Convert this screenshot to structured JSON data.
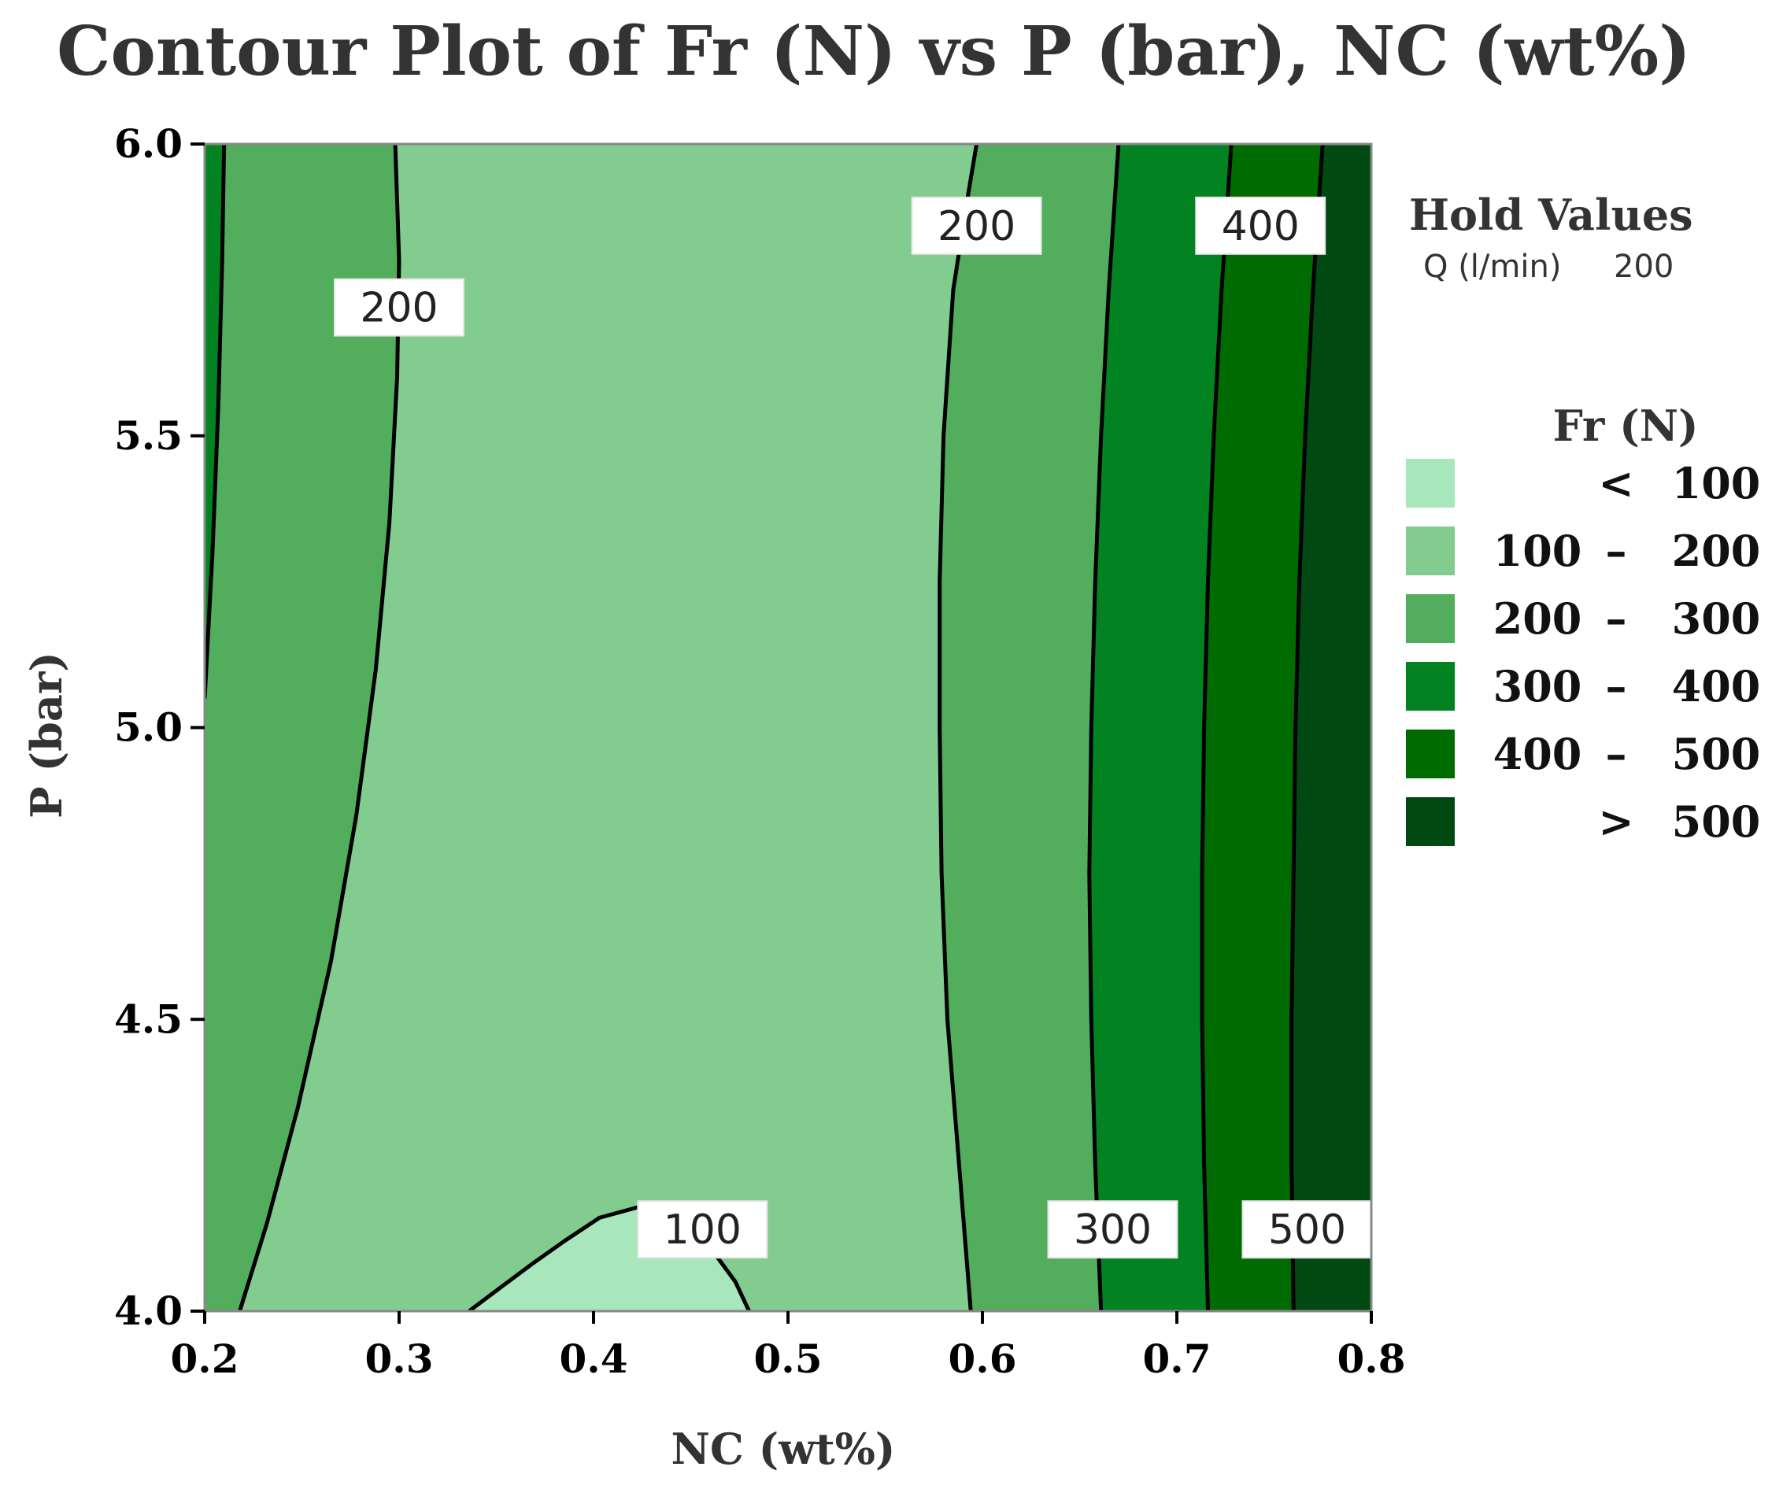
{
  "chart_data": {
    "type": "contour",
    "title": "Contour Plot of Fr (N) vs P (bar), NC (wt%)",
    "xlabel": "NC (wt%)",
    "ylabel": "P (bar)",
    "xlim": [
      0.2,
      0.8
    ],
    "ylim": [
      4.0,
      6.0
    ],
    "x_ticks": [
      "0.2",
      "0.3",
      "0.4",
      "0.5",
      "0.6",
      "0.7",
      "0.8"
    ],
    "y_ticks": [
      "4.0",
      "4.5",
      "5.0",
      "5.5",
      "6.0"
    ],
    "hold_values": {
      "title": "Hold Values",
      "variable": "Q (l/min)",
      "value": "200"
    },
    "legend": {
      "title": "Fr (N)",
      "placement": "right",
      "entries": [
        {
          "label_parts": [
            "<",
            "100"
          ],
          "color": "#a8e6bb"
        },
        {
          "label_parts": [
            "100",
            "–",
            "200"
          ],
          "color": "#82cc90"
        },
        {
          "label_parts": [
            "200",
            "–",
            "300"
          ],
          "color": "#52ad5c"
        },
        {
          "label_parts": [
            "300",
            "–",
            "400"
          ],
          "color": "#028221"
        },
        {
          "label_parts": [
            "400",
            "–",
            "500"
          ],
          "color": "#006b00"
        },
        {
          "label_parts": [
            ">",
            "500"
          ],
          "color": "#004912"
        }
      ]
    },
    "contour_levels": [
      {
        "level": "100",
        "curves": [
          [
            [
              0.336,
              4.0
            ],
            [
              0.352,
              4.04
            ],
            [
              0.368,
              4.08
            ],
            [
              0.385,
              4.12
            ],
            [
              0.403,
              4.16
            ],
            [
              0.425,
              4.18
            ],
            [
              0.445,
              4.15
            ],
            [
              0.462,
              4.1
            ],
            [
              0.473,
              4.05
            ],
            [
              0.48,
              4.0
            ]
          ]
        ],
        "labels": [
          {
            "text": "100",
            "x": 0.456,
            "y": 4.14
          }
        ]
      },
      {
        "level": "200",
        "curves": [
          [
            [
              0.218,
              4.0
            ],
            [
              0.232,
              4.15
            ],
            [
              0.248,
              4.35
            ],
            [
              0.265,
              4.6
            ],
            [
              0.278,
              4.85
            ],
            [
              0.288,
              5.1
            ],
            [
              0.295,
              5.35
            ],
            [
              0.299,
              5.6
            ],
            [
              0.3,
              5.8
            ],
            [
              0.298,
              6.0
            ]
          ],
          [
            [
              0.594,
              4.0
            ],
            [
              0.588,
              4.25
            ],
            [
              0.582,
              4.5
            ],
            [
              0.579,
              4.75
            ],
            [
              0.578,
              5.0
            ],
            [
              0.578,
              5.25
            ],
            [
              0.58,
              5.5
            ],
            [
              0.585,
              5.75
            ],
            [
              0.592,
              5.9
            ],
            [
              0.597,
              6.0
            ]
          ]
        ],
        "labels": [
          {
            "text": "200",
            "x": 0.3,
            "y": 5.72
          },
          {
            "text": "200",
            "x": 0.597,
            "y": 5.86
          }
        ]
      },
      {
        "level": "300",
        "curves": [
          [
            [
              0.2,
              5.05
            ],
            [
              0.204,
              5.3
            ],
            [
              0.207,
              5.55
            ],
            [
              0.209,
              5.8
            ],
            [
              0.21,
              6.0
            ]
          ],
          [
            [
              0.661,
              4.0
            ],
            [
              0.658,
              4.25
            ],
            [
              0.656,
              4.5
            ],
            [
              0.655,
              4.75
            ],
            [
              0.656,
              5.0
            ],
            [
              0.658,
              5.25
            ],
            [
              0.661,
              5.5
            ],
            [
              0.665,
              5.75
            ],
            [
              0.67,
              6.0
            ]
          ]
        ],
        "labels": [
          {
            "text": "300",
            "x": 0.667,
            "y": 4.14
          }
        ]
      },
      {
        "level": "400",
        "curves": [
          [
            [
              0.716,
              4.0
            ],
            [
              0.714,
              4.25
            ],
            [
              0.713,
              4.5
            ],
            [
              0.713,
              4.75
            ],
            [
              0.714,
              5.0
            ],
            [
              0.716,
              5.25
            ],
            [
              0.719,
              5.5
            ],
            [
              0.723,
              5.75
            ],
            [
              0.728,
              6.0
            ]
          ]
        ],
        "labels": [
          {
            "text": "400",
            "x": 0.743,
            "y": 5.86
          }
        ]
      },
      {
        "level": "500",
        "curves": [
          [
            [
              0.76,
              4.0
            ],
            [
              0.759,
              4.25
            ],
            [
              0.759,
              4.5
            ],
            [
              0.76,
              4.75
            ],
            [
              0.761,
              5.0
            ],
            [
              0.763,
              5.25
            ],
            [
              0.766,
              5.5
            ],
            [
              0.77,
              5.75
            ],
            [
              0.775,
              6.0
            ]
          ]
        ],
        "labels": [
          {
            "text": "500",
            "x": 0.767,
            "y": 4.14
          }
        ]
      }
    ],
    "regions": [
      {
        "range": "100 – 200",
        "color": "#82cc90",
        "polygon": [
          [
            0.218,
            4.0
          ],
          [
            0.232,
            4.15
          ],
          [
            0.248,
            4.35
          ],
          [
            0.265,
            4.6
          ],
          [
            0.278,
            4.85
          ],
          [
            0.288,
            5.1
          ],
          [
            0.295,
            5.35
          ],
          [
            0.299,
            5.6
          ],
          [
            0.3,
            5.8
          ],
          [
            0.298,
            6.0
          ],
          [
            0.597,
            6.0
          ],
          [
            0.592,
            5.9
          ],
          [
            0.585,
            5.75
          ],
          [
            0.58,
            5.5
          ],
          [
            0.578,
            5.25
          ],
          [
            0.578,
            5.0
          ],
          [
            0.579,
            4.75
          ],
          [
            0.582,
            4.5
          ],
          [
            0.588,
            4.25
          ],
          [
            0.594,
            4.0
          ]
        ]
      },
      {
        "range": "< 100",
        "color": "#a8e6bb",
        "polygon": [
          [
            0.336,
            4.0
          ],
          [
            0.352,
            4.04
          ],
          [
            0.368,
            4.08
          ],
          [
            0.385,
            4.12
          ],
          [
            0.403,
            4.16
          ],
          [
            0.425,
            4.18
          ],
          [
            0.445,
            4.15
          ],
          [
            0.462,
            4.1
          ],
          [
            0.473,
            4.05
          ],
          [
            0.48,
            4.0
          ]
        ]
      },
      {
        "range": "300 – 400",
        "color": "#028221",
        "polygon": [
          [
            0.2,
            5.05
          ],
          [
            0.204,
            5.3
          ],
          [
            0.207,
            5.55
          ],
          [
            0.209,
            5.8
          ],
          [
            0.21,
            6.0
          ],
          [
            0.2,
            6.0
          ]
        ]
      },
      {
        "range": "300 – 400",
        "color": "#028221",
        "polygon": [
          [
            0.661,
            4.0
          ],
          [
            0.658,
            4.25
          ],
          [
            0.656,
            4.5
          ],
          [
            0.655,
            4.75
          ],
          [
            0.656,
            5.0
          ],
          [
            0.658,
            5.25
          ],
          [
            0.661,
            5.5
          ],
          [
            0.665,
            5.75
          ],
          [
            0.67,
            6.0
          ],
          [
            0.728,
            6.0
          ],
          [
            0.723,
            5.75
          ],
          [
            0.719,
            5.5
          ],
          [
            0.716,
            5.25
          ],
          [
            0.714,
            5.0
          ],
          [
            0.713,
            4.75
          ],
          [
            0.713,
            4.5
          ],
          [
            0.714,
            4.25
          ],
          [
            0.716,
            4.0
          ]
        ]
      },
      {
        "range": "400 – 500",
        "color": "#006b00",
        "polygon": [
          [
            0.716,
            4.0
          ],
          [
            0.714,
            4.25
          ],
          [
            0.713,
            4.5
          ],
          [
            0.713,
            4.75
          ],
          [
            0.714,
            5.0
          ],
          [
            0.716,
            5.25
          ],
          [
            0.719,
            5.5
          ],
          [
            0.723,
            5.75
          ],
          [
            0.728,
            6.0
          ],
          [
            0.775,
            6.0
          ],
          [
            0.77,
            5.75
          ],
          [
            0.766,
            5.5
          ],
          [
            0.763,
            5.25
          ],
          [
            0.761,
            5.0
          ],
          [
            0.76,
            4.75
          ],
          [
            0.759,
            4.5
          ],
          [
            0.759,
            4.25
          ],
          [
            0.76,
            4.0
          ]
        ]
      },
      {
        "range": "> 500",
        "color": "#004912",
        "polygon": [
          [
            0.76,
            4.0
          ],
          [
            0.759,
            4.25
          ],
          [
            0.759,
            4.5
          ],
          [
            0.76,
            4.75
          ],
          [
            0.761,
            5.0
          ],
          [
            0.763,
            5.25
          ],
          [
            0.766,
            5.5
          ],
          [
            0.77,
            5.75
          ],
          [
            0.775,
            6.0
          ],
          [
            0.8,
            6.0
          ],
          [
            0.8,
            4.0
          ]
        ]
      }
    ],
    "background_region": {
      "range": "200 – 300",
      "color": "#52ad5c"
    }
  }
}
